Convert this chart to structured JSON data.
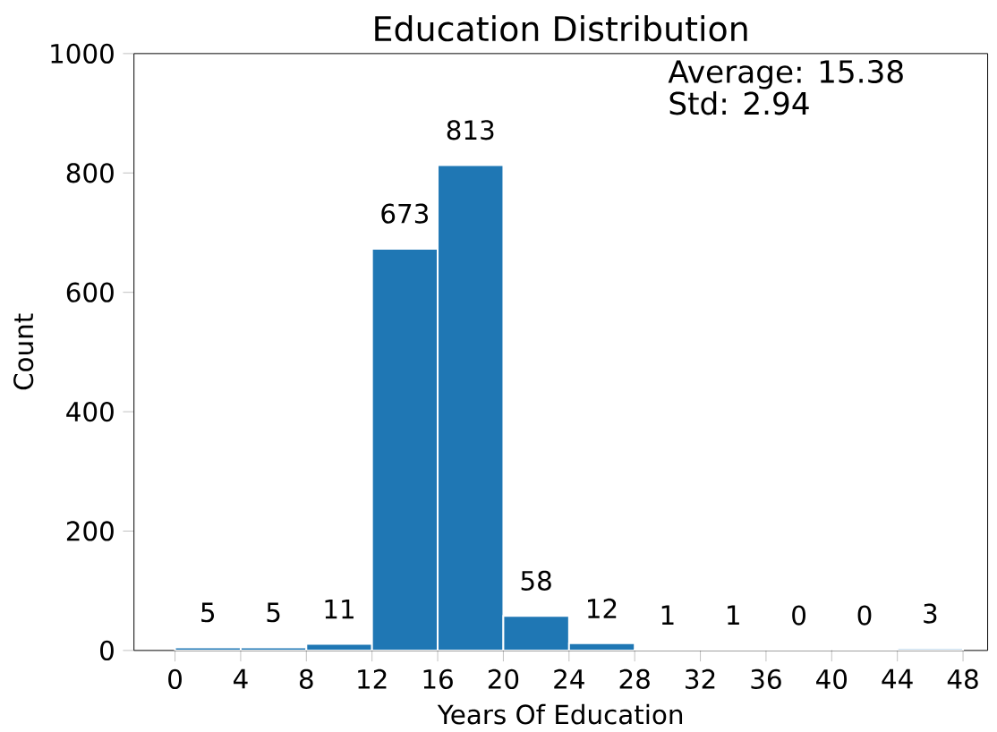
{
  "chart_data": {
    "type": "histogram",
    "title": "Education Distribution",
    "xlabel": "Years Of Education",
    "ylabel": "Count",
    "bins": [
      0,
      4,
      8,
      12,
      16,
      20,
      24,
      28,
      32,
      36,
      40,
      44,
      48
    ],
    "values": [
      5,
      5,
      11,
      673,
      813,
      58,
      12,
      1,
      1,
      0,
      0,
      3
    ],
    "color": "#1f77b4",
    "data_labels": true,
    "xlim": [
      -2.5,
      49.5
    ],
    "ylim": [
      0,
      1000
    ],
    "xticks": [
      0,
      4,
      8,
      12,
      16,
      20,
      24,
      28,
      32,
      36,
      40,
      44,
      48
    ],
    "yticks": [
      0,
      200,
      400,
      600,
      800,
      1000
    ],
    "annotations": [
      "Average: 15.38",
      "Std: 2.94"
    ]
  }
}
